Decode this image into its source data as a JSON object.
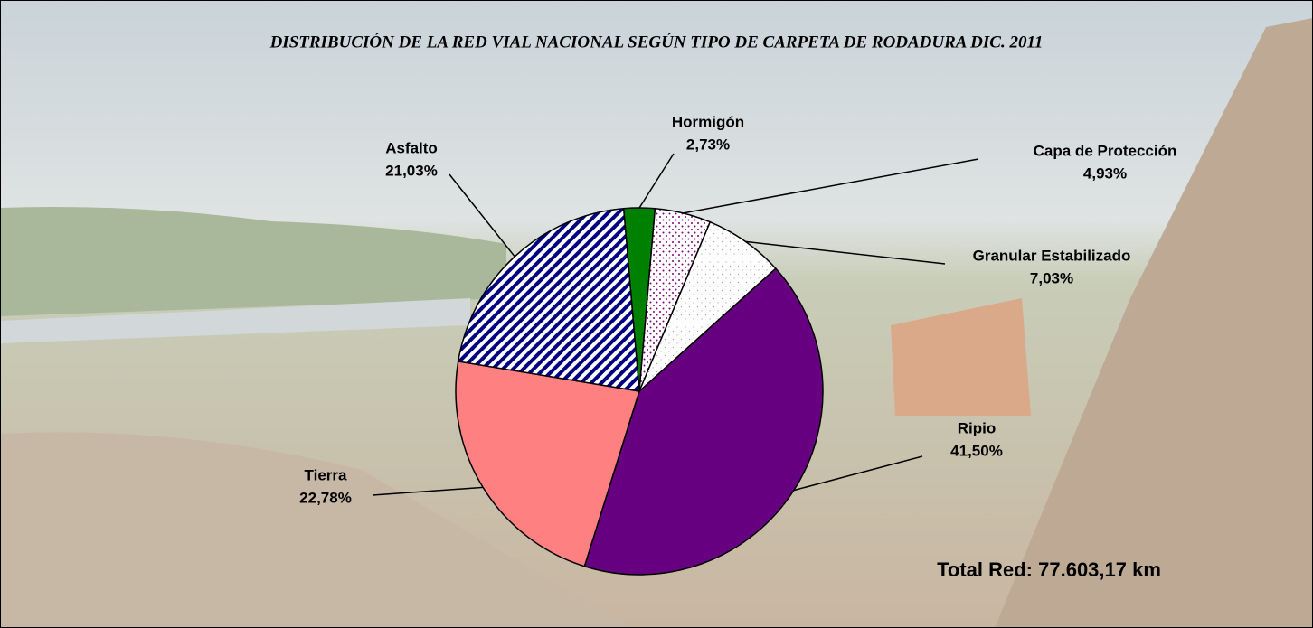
{
  "chart_data": {
    "type": "pie",
    "title": "DISTRIBUCIÓN DE LA RED VIAL NACIONAL SEGÚN TIPO DE CARPETA DE RODADURA DIC. 2011",
    "categories": [
      "Hormigón",
      "Capa de Protección",
      "Granular Estabilizado",
      "Ripio",
      "Tierra",
      "Asfalto"
    ],
    "values": [
      2.73,
      4.93,
      7.03,
      41.5,
      22.78,
      21.03
    ],
    "value_labels": [
      "2,73%",
      "4,93%",
      "7,03%",
      "41,50%",
      "22,78%",
      "21,03%"
    ],
    "colors": [
      "#008000",
      "#800080",
      "#a0a0a0",
      "#660080",
      "#ff8080",
      "#000080"
    ],
    "annotation": "Total Red: 77.603,17 km"
  }
}
